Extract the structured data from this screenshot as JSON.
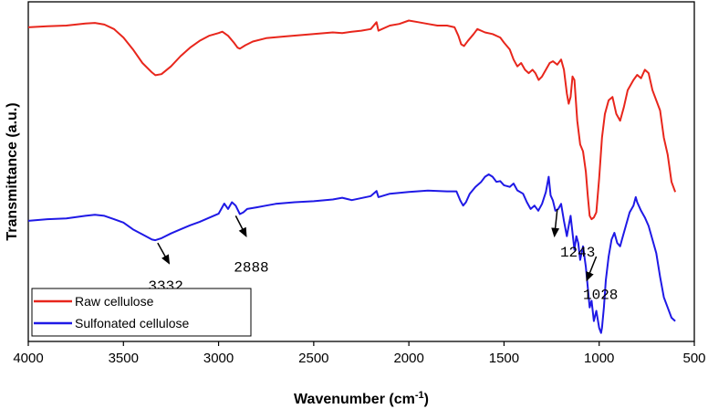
{
  "chart_data": {
    "type": "line",
    "xlabel": "Wavenumber (cm",
    "xlabel_sup": "-1",
    "xlabel_end": ")",
    "ylabel": "Transmittance (a.u.)",
    "xlim": [
      4000,
      500
    ],
    "ylim": [
      0,
      100
    ],
    "x_ticks": [
      "4000",
      "3500",
      "3000",
      "2500",
      "2000",
      "1500",
      "1000",
      "500"
    ],
    "legend": {
      "position": "bottom-left"
    },
    "series": [
      {
        "name": "Raw cellulose",
        "color": "#e8261c",
        "points": [
          [
            4000,
            92.5
          ],
          [
            3900,
            92.8
          ],
          [
            3800,
            93
          ],
          [
            3700,
            93.6
          ],
          [
            3650,
            93.8
          ],
          [
            3600,
            93.3
          ],
          [
            3550,
            92
          ],
          [
            3500,
            89.5
          ],
          [
            3450,
            86
          ],
          [
            3400,
            82
          ],
          [
            3350,
            79.2
          ],
          [
            3332,
            78.4
          ],
          [
            3300,
            78.7
          ],
          [
            3250,
            81
          ],
          [
            3200,
            84
          ],
          [
            3150,
            86.5
          ],
          [
            3100,
            88.5
          ],
          [
            3050,
            90
          ],
          [
            3000,
            90.8
          ],
          [
            2980,
            91.2
          ],
          [
            2950,
            90
          ],
          [
            2920,
            88
          ],
          [
            2900,
            86.5
          ],
          [
            2888,
            86.2
          ],
          [
            2860,
            87.2
          ],
          [
            2820,
            88.3
          ],
          [
            2750,
            89.3
          ],
          [
            2650,
            89.8
          ],
          [
            2500,
            90.5
          ],
          [
            2400,
            91
          ],
          [
            2350,
            90.8
          ],
          [
            2300,
            91.2
          ],
          [
            2250,
            91.5
          ],
          [
            2200,
            92
          ],
          [
            2170,
            94
          ],
          [
            2160,
            91.5
          ],
          [
            2100,
            93
          ],
          [
            2050,
            93.5
          ],
          [
            2000,
            94.5
          ],
          [
            1950,
            94
          ],
          [
            1900,
            93.5
          ],
          [
            1850,
            93
          ],
          [
            1800,
            93
          ],
          [
            1760,
            92.5
          ],
          [
            1740,
            90
          ],
          [
            1725,
            87.5
          ],
          [
            1710,
            87
          ],
          [
            1690,
            88.5
          ],
          [
            1660,
            90.5
          ],
          [
            1640,
            92
          ],
          [
            1600,
            91
          ],
          [
            1560,
            90.5
          ],
          [
            1520,
            89.5
          ],
          [
            1500,
            88
          ],
          [
            1470,
            86
          ],
          [
            1450,
            83
          ],
          [
            1430,
            81
          ],
          [
            1410,
            82
          ],
          [
            1390,
            80
          ],
          [
            1370,
            79
          ],
          [
            1350,
            80
          ],
          [
            1335,
            79
          ],
          [
            1318,
            77
          ],
          [
            1300,
            78
          ],
          [
            1280,
            80
          ],
          [
            1260,
            82
          ],
          [
            1243,
            82.5
          ],
          [
            1220,
            81.5
          ],
          [
            1200,
            83
          ],
          [
            1185,
            80
          ],
          [
            1170,
            73
          ],
          [
            1160,
            70
          ],
          [
            1150,
            72
          ],
          [
            1140,
            78
          ],
          [
            1130,
            77
          ],
          [
            1115,
            65
          ],
          [
            1100,
            58
          ],
          [
            1085,
            56
          ],
          [
            1070,
            50
          ],
          [
            1060,
            43
          ],
          [
            1050,
            37
          ],
          [
            1040,
            36
          ],
          [
            1028,
            36.5
          ],
          [
            1015,
            38
          ],
          [
            1000,
            48
          ],
          [
            985,
            60
          ],
          [
            970,
            67
          ],
          [
            950,
            71
          ],
          [
            930,
            72
          ],
          [
            910,
            67
          ],
          [
            890,
            65
          ],
          [
            870,
            69
          ],
          [
            850,
            74
          ],
          [
            820,
            77
          ],
          [
            800,
            78.5
          ],
          [
            780,
            77.5
          ],
          [
            760,
            80
          ],
          [
            740,
            79
          ],
          [
            720,
            74
          ],
          [
            700,
            71
          ],
          [
            680,
            68
          ],
          [
            660,
            60
          ],
          [
            640,
            55
          ],
          [
            620,
            47
          ],
          [
            600,
            44
          ]
        ]
      },
      {
        "name": "Sulfonated cellulose",
        "color": "#1f19e6",
        "points": [
          [
            4000,
            35.5
          ],
          [
            3900,
            36
          ],
          [
            3800,
            36.2
          ],
          [
            3700,
            37
          ],
          [
            3650,
            37.3
          ],
          [
            3600,
            37
          ],
          [
            3550,
            36
          ],
          [
            3500,
            35
          ],
          [
            3450,
            33
          ],
          [
            3400,
            31.5
          ],
          [
            3350,
            30
          ],
          [
            3332,
            29.8
          ],
          [
            3300,
            30.4
          ],
          [
            3250,
            31.8
          ],
          [
            3200,
            33
          ],
          [
            3150,
            34.2
          ],
          [
            3100,
            35.2
          ],
          [
            3050,
            36.4
          ],
          [
            3000,
            37.6
          ],
          [
            2970,
            40.6
          ],
          [
            2950,
            39
          ],
          [
            2930,
            41
          ],
          [
            2910,
            40
          ],
          [
            2888,
            37.5
          ],
          [
            2870,
            38
          ],
          [
            2850,
            39
          ],
          [
            2800,
            39.5
          ],
          [
            2750,
            40
          ],
          [
            2700,
            40.5
          ],
          [
            2600,
            41
          ],
          [
            2500,
            41.3
          ],
          [
            2400,
            41.8
          ],
          [
            2350,
            42.3
          ],
          [
            2300,
            41.6
          ],
          [
            2200,
            42.8
          ],
          [
            2170,
            44.3
          ],
          [
            2160,
            42.5
          ],
          [
            2100,
            43.5
          ],
          [
            2000,
            44
          ],
          [
            1900,
            44.4
          ],
          [
            1800,
            44.2
          ],
          [
            1750,
            44.2
          ],
          [
            1730,
            41.5
          ],
          [
            1715,
            40
          ],
          [
            1700,
            41
          ],
          [
            1680,
            43.5
          ],
          [
            1650,
            45.5
          ],
          [
            1620,
            47
          ],
          [
            1600,
            48.5
          ],
          [
            1580,
            49.2
          ],
          [
            1560,
            48.5
          ],
          [
            1540,
            47
          ],
          [
            1520,
            47.2
          ],
          [
            1500,
            46
          ],
          [
            1470,
            45.5
          ],
          [
            1450,
            46.5
          ],
          [
            1430,
            44.5
          ],
          [
            1400,
            43.5
          ],
          [
            1380,
            41
          ],
          [
            1360,
            39
          ],
          [
            1340,
            40
          ],
          [
            1320,
            38.5
          ],
          [
            1300,
            40.5
          ],
          [
            1280,
            44
          ],
          [
            1265,
            48.5
          ],
          [
            1255,
            43
          ],
          [
            1243,
            41.5
          ],
          [
            1230,
            38.5
          ],
          [
            1215,
            39
          ],
          [
            1200,
            40.5
          ],
          [
            1185,
            35.5
          ],
          [
            1170,
            31
          ],
          [
            1160,
            34
          ],
          [
            1150,
            37
          ],
          [
            1140,
            32
          ],
          [
            1130,
            27
          ],
          [
            1120,
            31
          ],
          [
            1110,
            29
          ],
          [
            1100,
            24
          ],
          [
            1085,
            28
          ],
          [
            1070,
            22
          ],
          [
            1060,
            16
          ],
          [
            1050,
            10
          ],
          [
            1040,
            12
          ],
          [
            1028,
            6
          ],
          [
            1015,
            9
          ],
          [
            1000,
            4
          ],
          [
            990,
            2.5
          ],
          [
            985,
            4
          ],
          [
            975,
            10
          ],
          [
            965,
            18
          ],
          [
            950,
            25
          ],
          [
            935,
            30
          ],
          [
            920,
            32
          ],
          [
            905,
            29
          ],
          [
            890,
            28
          ],
          [
            880,
            30
          ],
          [
            860,
            34
          ],
          [
            840,
            38
          ],
          [
            820,
            40
          ],
          [
            808,
            42.5
          ],
          [
            800,
            41
          ],
          [
            780,
            38.5
          ],
          [
            760,
            36.5
          ],
          [
            740,
            34
          ],
          [
            720,
            30
          ],
          [
            700,
            26
          ],
          [
            680,
            19
          ],
          [
            660,
            13
          ],
          [
            640,
            10
          ],
          [
            620,
            7
          ],
          [
            600,
            6
          ]
        ]
      }
    ],
    "annotations": [
      {
        "label": "3332",
        "from": [
          3320,
          29
        ],
        "to": [
          3260,
          23
        ],
        "text_at": [
          3370,
          15
        ]
      },
      {
        "label": "2888",
        "from": [
          2910,
          37
        ],
        "to": [
          2855,
          31
        ],
        "text_at": [
          2920,
          20.5
        ]
      },
      {
        "label": "1243",
        "from": [
          1220,
          39
        ],
        "to": [
          1235,
          31
        ],
        "text_at": [
          1205,
          25
        ]
      },
      {
        "label": "1028",
        "from": [
          1015,
          25
        ],
        "to": [
          1065,
          18
        ],
        "text_at": [
          1085,
          12.5
        ]
      }
    ]
  }
}
